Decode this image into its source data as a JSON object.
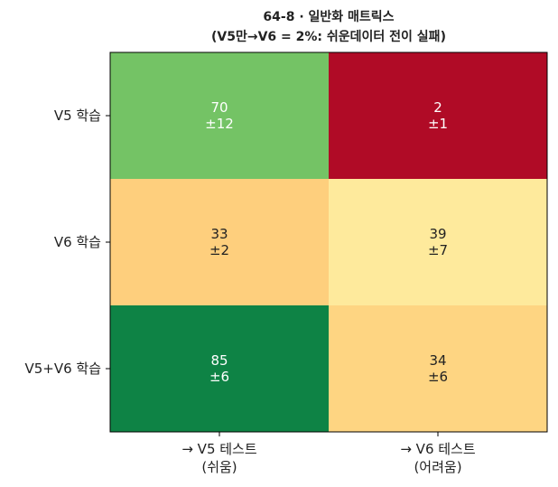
{
  "chart_data": {
    "type": "heatmap",
    "title": "64-8 · 일반화 매트릭스\n(V5만→V6 = 2%: 쉬운데이터 전이 실패)",
    "rows": [
      "V5 학습",
      "V6 학습",
      "V5+V6 학습"
    ],
    "columns": [
      "→ V5 테스트\n(쉬움)",
      "→ V6 테스트\n(어려움)"
    ],
    "values": [
      [
        70,
        2
      ],
      [
        33,
        39
      ],
      [
        85,
        34
      ]
    ],
    "errors": [
      [
        12,
        1
      ],
      [
        2,
        7
      ],
      [
        6,
        6
      ]
    ],
    "error_labels": [
      [
        "±12",
        "±1"
      ],
      [
        "±2",
        "±7"
      ],
      [
        "±6",
        "±6"
      ]
    ],
    "colormap": [
      "#a50026",
      "#d73027",
      "#f46d43",
      "#fdae61",
      "#fee08b",
      "#ffffbf",
      "#d9ef8b",
      "#a6d96a",
      "#66bd63",
      "#1a9850",
      "#006837"
    ],
    "clim": [
      0,
      90
    ]
  }
}
